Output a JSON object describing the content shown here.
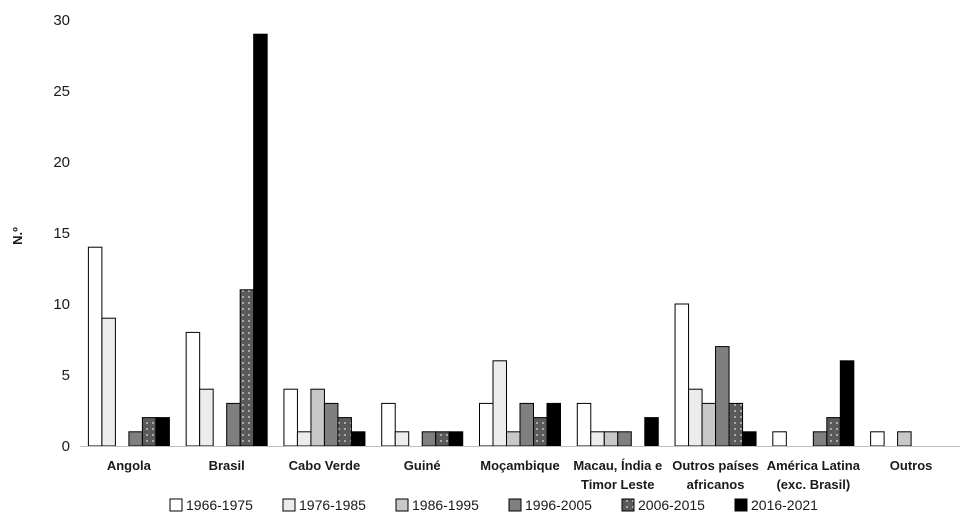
{
  "chart_data": {
    "type": "bar",
    "ylabel": "N.º",
    "xlabel": "",
    "title": "",
    "ylim": [
      0,
      30
    ],
    "yticks": [
      0,
      5,
      10,
      15,
      20,
      25,
      30
    ],
    "grid": false,
    "legend_position": "bottom",
    "categories": [
      [
        "Angola"
      ],
      [
        "Brasil"
      ],
      [
        "Cabo Verde"
      ],
      [
        "Guiné"
      ],
      [
        "Moçambique"
      ],
      [
        "Macau, Índia e",
        "Timor Leste"
      ],
      [
        "Outros países",
        "africanos"
      ],
      [
        "América Latina",
        "(exc. Brasil)"
      ],
      [
        "Outros"
      ]
    ],
    "series": [
      {
        "name": "1966-1975",
        "color": "#ffffff",
        "values": [
          14,
          8,
          4,
          3,
          3,
          3,
          10,
          1,
          1
        ]
      },
      {
        "name": "1976-1985",
        "color": "#ececec",
        "values": [
          9,
          4,
          1,
          1,
          6,
          1,
          4,
          0,
          0
        ]
      },
      {
        "name": "1986-1995",
        "color": "#c8c8c8",
        "values": [
          0,
          0,
          4,
          0,
          1,
          1,
          3,
          0,
          1
        ]
      },
      {
        "name": "1996-2005",
        "color": "#7f7f7f",
        "values": [
          1,
          3,
          3,
          1,
          3,
          1,
          7,
          1,
          0
        ]
      },
      {
        "name": "2006-2015",
        "color": "#5a5a5a",
        "values": [
          2,
          11,
          2,
          1,
          2,
          0,
          3,
          2,
          0
        ]
      },
      {
        "name": "2016-2021",
        "color": "#000000",
        "values": [
          2,
          29,
          1,
          1,
          3,
          2,
          1,
          6,
          0
        ]
      }
    ]
  }
}
